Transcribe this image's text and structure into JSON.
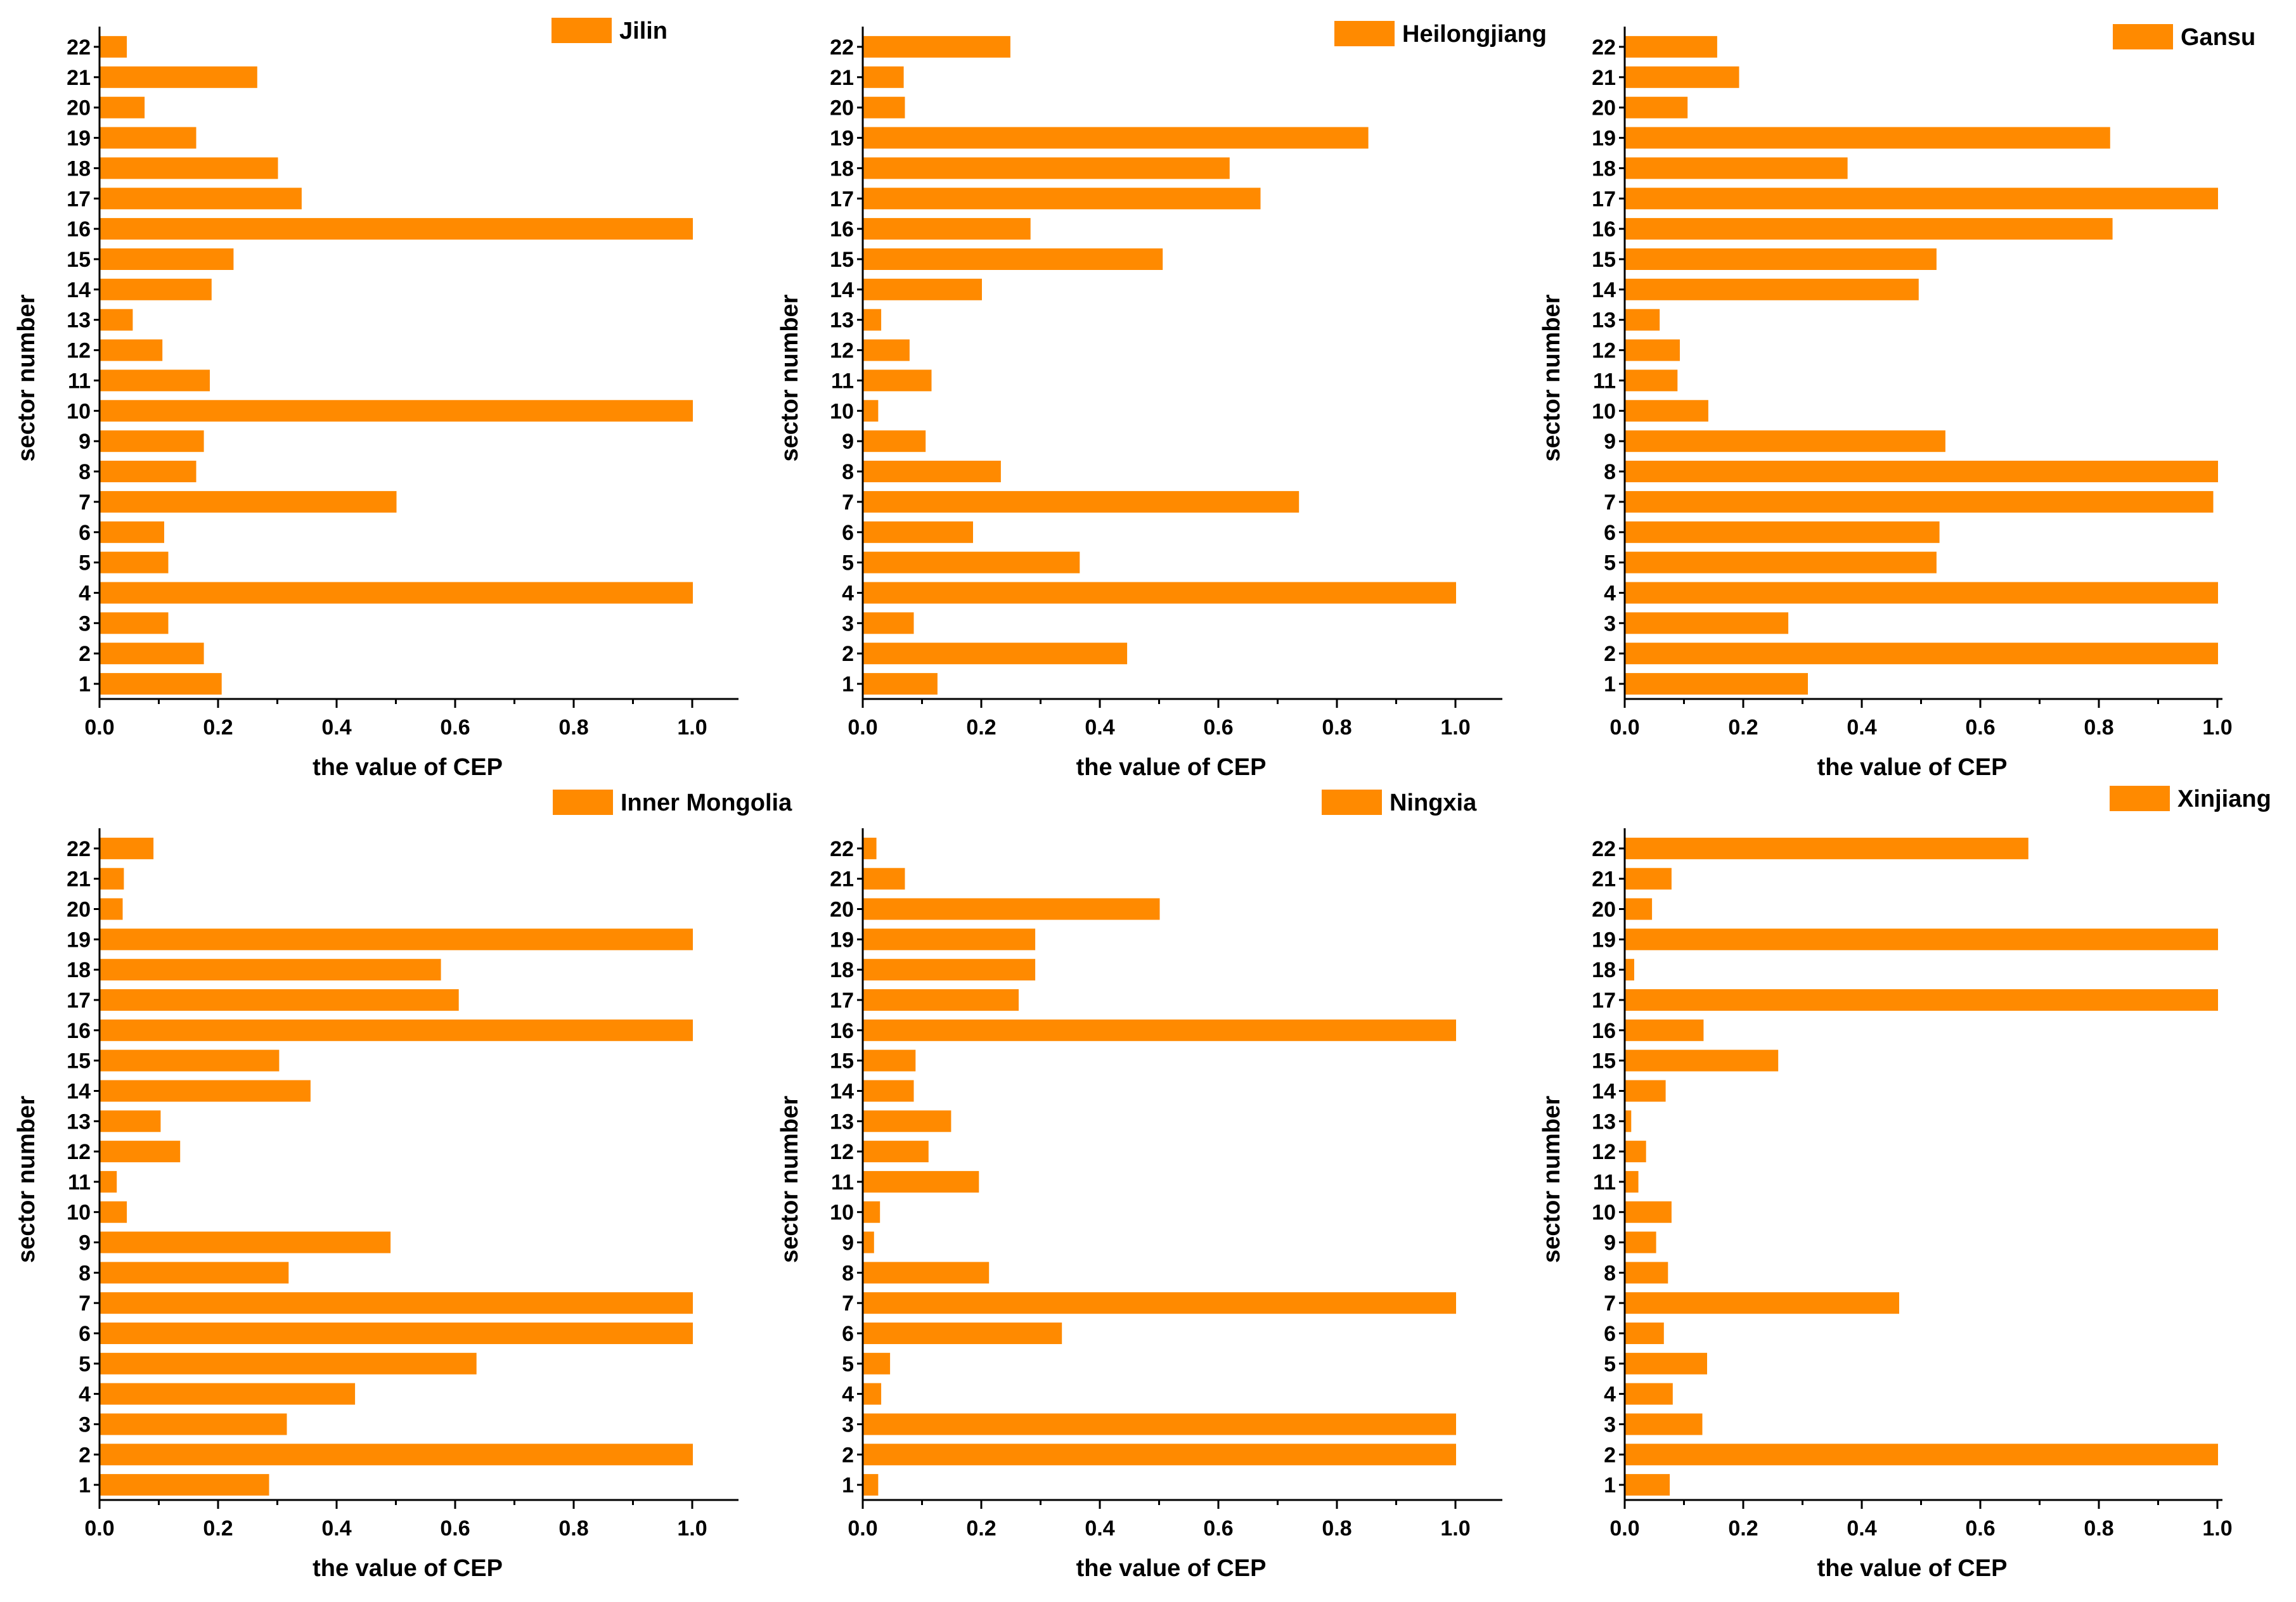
{
  "bar_color": "#ff8a00",
  "axis_color": "#000000",
  "chart_data": [
    {
      "type": "bar",
      "orientation": "horizontal",
      "title": "Jilin",
      "legend": "Jilin",
      "xlabel": "the value of CEP",
      "ylabel": "sector number",
      "xlim": [
        0,
        1.08
      ],
      "xticks": [
        "0.0",
        "0.2",
        "0.4",
        "0.6",
        "0.8",
        "1.0"
      ],
      "categories": [
        "1",
        "2",
        "3",
        "4",
        "5",
        "6",
        "7",
        "8",
        "9",
        "10",
        "11",
        "12",
        "13",
        "14",
        "15",
        "16",
        "17",
        "18",
        "19",
        "20",
        "21",
        "22"
      ],
      "values": [
        0.205,
        0.175,
        0.115,
        1.0,
        0.115,
        0.108,
        0.5,
        0.162,
        0.175,
        1.0,
        0.185,
        0.105,
        0.055,
        0.188,
        0.225,
        1.0,
        0.34,
        0.3,
        0.162,
        0.075,
        0.265,
        0.045
      ]
    },
    {
      "type": "bar",
      "orientation": "horizontal",
      "title": "Heilongjiang",
      "legend": "Heilongjiang",
      "xlabel": "the value of CEP",
      "ylabel": "sector number",
      "xlim": [
        0,
        1.08
      ],
      "xticks": [
        "0.0",
        "0.2",
        "0.4",
        "0.6",
        "0.8",
        "1.0"
      ],
      "categories": [
        "1",
        "2",
        "3",
        "4",
        "5",
        "6",
        "7",
        "8",
        "9",
        "10",
        "11",
        "12",
        "13",
        "14",
        "15",
        "16",
        "17",
        "18",
        "19",
        "20",
        "21",
        "22"
      ],
      "values": [
        0.125,
        0.445,
        0.085,
        1.0,
        0.365,
        0.185,
        0.735,
        0.232,
        0.105,
        0.025,
        0.115,
        0.078,
        0.03,
        0.2,
        0.505,
        0.282,
        0.67,
        0.618,
        0.852,
        0.07,
        0.068,
        0.248
      ]
    },
    {
      "type": "bar",
      "orientation": "horizontal",
      "title": "Gansu",
      "legend": "Gansu",
      "xlabel": "the value of CEP",
      "ylabel": "sector number",
      "xlim": [
        0,
        1.08
      ],
      "xticks": [
        "0.0",
        "0.2",
        "0.4",
        "0.6",
        "0.8",
        "1.0"
      ],
      "categories": [
        "1",
        "2",
        "3",
        "4",
        "5",
        "6",
        "7",
        "8",
        "9",
        "10",
        "11",
        "12",
        "13",
        "14",
        "15",
        "16",
        "17",
        "18",
        "19",
        "20",
        "21",
        "22"
      ],
      "values": [
        0.308,
        1.0,
        0.275,
        1.0,
        0.525,
        0.53,
        0.992,
        1.0,
        0.54,
        0.14,
        0.088,
        0.092,
        0.058,
        0.495,
        0.525,
        0.822,
        1.0,
        0.375,
        0.818,
        0.105,
        0.192,
        0.155
      ]
    },
    {
      "type": "bar",
      "orientation": "horizontal",
      "title": "Inner Mongolia",
      "legend": "Inner Mongolia",
      "xlabel": "the value of CEP",
      "ylabel": "sector number",
      "xlim": [
        0,
        1.08
      ],
      "xticks": [
        "0.0",
        "0.2",
        "0.4",
        "0.6",
        "0.8",
        "1.0"
      ],
      "categories": [
        "1",
        "2",
        "3",
        "4",
        "5",
        "6",
        "7",
        "8",
        "9",
        "10",
        "11",
        "12",
        "13",
        "14",
        "15",
        "16",
        "17",
        "18",
        "19",
        "20",
        "21",
        "22"
      ],
      "values": [
        0.285,
        1.0,
        0.315,
        0.43,
        0.635,
        1.0,
        1.0,
        0.318,
        0.49,
        0.045,
        0.028,
        0.135,
        0.102,
        0.355,
        0.302,
        1.0,
        0.605,
        0.575,
        1.0,
        0.038,
        0.04,
        0.09
      ]
    },
    {
      "type": "bar",
      "orientation": "horizontal",
      "title": "Ningxia",
      "legend": "Ningxia",
      "xlabel": "the value of CEP",
      "ylabel": "sector number",
      "xlim": [
        0,
        1.08
      ],
      "xticks": [
        "0.0",
        "0.2",
        "0.4",
        "0.6",
        "0.8",
        "1.0"
      ],
      "categories": [
        "1",
        "2",
        "3",
        "4",
        "5",
        "6",
        "7",
        "8",
        "9",
        "10",
        "11",
        "12",
        "13",
        "14",
        "15",
        "16",
        "17",
        "18",
        "19",
        "20",
        "21",
        "22"
      ],
      "values": [
        0.025,
        1.0,
        1.0,
        0.03,
        0.045,
        0.335,
        1.0,
        0.212,
        0.018,
        0.028,
        0.195,
        0.11,
        0.148,
        0.085,
        0.088,
        1.0,
        0.262,
        0.29,
        0.29,
        0.5,
        0.07,
        0.022
      ]
    },
    {
      "type": "bar",
      "orientation": "horizontal",
      "title": "Xinjiang",
      "legend": "Xinjiang",
      "xlabel": "the value of CEP",
      "ylabel": "sector number",
      "xlim": [
        0,
        1.08
      ],
      "xticks": [
        "0.0",
        "0.2",
        "0.4",
        "0.6",
        "0.8",
        "1.0"
      ],
      "categories": [
        "1",
        "2",
        "3",
        "4",
        "5",
        "6",
        "7",
        "8",
        "9",
        "10",
        "11",
        "12",
        "13",
        "14",
        "15",
        "16",
        "17",
        "18",
        "19",
        "20",
        "21",
        "22"
      ],
      "values": [
        0.075,
        1.0,
        0.13,
        0.08,
        0.138,
        0.065,
        0.462,
        0.072,
        0.052,
        0.078,
        0.022,
        0.035,
        0.01,
        0.068,
        0.258,
        0.132,
        1.0,
        0.015,
        1.0,
        0.045,
        0.078,
        0.68
      ]
    }
  ]
}
